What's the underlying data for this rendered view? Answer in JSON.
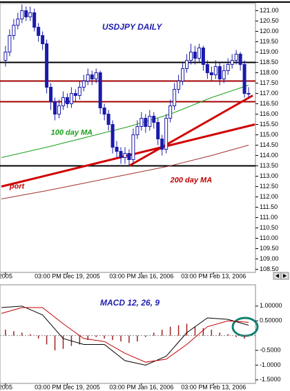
{
  "chart_data": [
    {
      "type": "candlestick",
      "title": "USDJPY DAILY",
      "annotations": [
        {
          "text": "100 day MA",
          "color": "#1a9e1a",
          "x": 11,
          "y": 115.1
        },
        {
          "text": "200 day MA",
          "color": "#c00000",
          "x": 40,
          "y": 112.8
        },
        {
          "text": "port",
          "color": "#c00000",
          "x": 1,
          "y": 112.5
        }
      ],
      "open": [
        118.6,
        119.0,
        119.8,
        120.3,
        120.6,
        121.0,
        120.7,
        120.9,
        120.2,
        119.8,
        119.4,
        117.3,
        116.6,
        116.0,
        116.4,
        116.8,
        116.5,
        117.0,
        116.9,
        117.3,
        117.6,
        117.9,
        117.7,
        118.0,
        116.3,
        116.0,
        115.5,
        114.4,
        114.2,
        113.9,
        114.1,
        113.8,
        115.0,
        115.4,
        115.8,
        115.4,
        115.9,
        115.6,
        114.8,
        114.3,
        115.8,
        116.4,
        117.2,
        117.6,
        118.2,
        118.6,
        119.0,
        118.7,
        119.2,
        118.4,
        118.0,
        117.9,
        118.3,
        117.7,
        118.1,
        118.4,
        118.6,
        118.9,
        118.4,
        117.0
      ],
      "high": [
        119.3,
        120.1,
        120.6,
        120.9,
        121.3,
        121.2,
        121.2,
        121.1,
        120.4,
        120.0,
        119.6,
        117.5,
        116.8,
        116.7,
        117.1,
        117.0,
        117.3,
        117.2,
        117.6,
        117.9,
        118.2,
        118.1,
        118.2,
        118.1,
        116.5,
        116.2,
        115.7,
        114.7,
        114.4,
        114.4,
        114.3,
        115.3,
        115.7,
        116.1,
        116.0,
        116.2,
        116.1,
        115.8,
        115.0,
        116.0,
        116.7,
        117.5,
        117.9,
        118.5,
        118.9,
        119.4,
        119.3,
        119.4,
        119.3,
        118.6,
        118.3,
        118.6,
        118.5,
        118.4,
        118.7,
        118.9,
        119.1,
        119.0,
        118.6,
        117.3
      ],
      "low": [
        118.3,
        118.8,
        119.6,
        120.1,
        120.4,
        120.5,
        120.5,
        120.0,
        119.5,
        119.1,
        117.0,
        116.2,
        115.7,
        115.8,
        116.2,
        116.3,
        116.3,
        116.6,
        116.7,
        117.1,
        117.4,
        117.4,
        117.5,
        116.0,
        115.7,
        115.2,
        114.1,
        113.9,
        113.6,
        113.6,
        113.5,
        113.6,
        114.8,
        115.2,
        115.1,
        115.2,
        115.3,
        114.5,
        114.0,
        114.1,
        115.6,
        116.2,
        117.0,
        117.4,
        118.0,
        118.4,
        118.4,
        118.5,
        118.1,
        117.7,
        117.6,
        117.7,
        117.4,
        117.5,
        117.9,
        118.2,
        118.4,
        118.1,
        116.8,
        116.8
      ],
      "close": [
        119.0,
        119.8,
        120.3,
        120.6,
        121.0,
        120.7,
        120.9,
        120.2,
        119.8,
        119.4,
        117.3,
        116.6,
        116.0,
        116.4,
        116.8,
        116.5,
        117.0,
        116.9,
        117.3,
        117.6,
        117.9,
        117.7,
        118.0,
        116.3,
        116.0,
        115.5,
        114.4,
        114.2,
        113.9,
        114.1,
        113.8,
        115.0,
        115.4,
        115.8,
        115.4,
        115.9,
        115.6,
        114.8,
        114.3,
        115.8,
        116.4,
        117.2,
        117.6,
        118.2,
        118.6,
        119.0,
        118.7,
        119.2,
        118.4,
        118.0,
        117.9,
        118.3,
        117.7,
        118.1,
        118.4,
        118.6,
        118.9,
        118.4,
        117.0,
        117.0
      ],
      "color": "#1a1aaa",
      "lines": [
        {
          "x": [
            -1,
            10,
            20,
            30,
            40,
            50,
            59
          ],
          "values": [
            113.9,
            114.4,
            114.9,
            115.4,
            116.0,
            116.8,
            117.4
          ],
          "color": "#1a9e1a"
        },
        {
          "x": [
            -1,
            10,
            20,
            30,
            40,
            50,
            59
          ],
          "values": [
            111.9,
            112.3,
            112.7,
            113.1,
            113.5,
            114.0,
            114.5
          ],
          "color": "#a03030"
        },
        {
          "x": [
            -1,
            60.5
          ],
          "values": [
            112.5,
            115.5
          ],
          "color": "#d00000"
        },
        {
          "x": [
            30,
            60
          ],
          "values": [
            113.5,
            116.9
          ],
          "color": "#d00000"
        }
      ],
      "levels": [
        {
          "value": 118.5,
          "color": "#000000"
        },
        {
          "value": 117.6,
          "color": "#a00000"
        },
        {
          "value": 116.6,
          "color": "#a00000"
        },
        {
          "value": 113.5,
          "color": "#000000"
        }
      ],
      "xlim": [
        -1.33,
        60.67
      ],
      "xticks": [
        {
          "value": 0,
          "label": "2005"
        },
        {
          "value": 15,
          "label": "03:00 PM Dec 19, 2005"
        },
        {
          "value": 33,
          "label": "03:00 PM Jan 16, 2006"
        },
        {
          "value": 50.5,
          "label": "03:00 PM Feb 13, 2006"
        }
      ],
      "ylim": [
        108.35,
        121.35
      ],
      "yticks": [
        {
          "value": 121,
          "label": "121.00"
        },
        {
          "value": 120.5,
          "label": "120.50"
        },
        {
          "value": 120,
          "label": "120.00"
        },
        {
          "value": 119.5,
          "label": "119.50"
        },
        {
          "value": 119,
          "label": "119.00"
        },
        {
          "value": 118.5,
          "label": "118.50"
        },
        {
          "value": 118,
          "label": "118.00"
        },
        {
          "value": 117.5,
          "label": "117.50"
        },
        {
          "value": 117,
          "label": "117.00"
        },
        {
          "value": 116.5,
          "label": "116.50"
        },
        {
          "value": 116,
          "label": "116.00"
        },
        {
          "value": 115.5,
          "label": "115.50"
        },
        {
          "value": 115,
          "label": "115.00"
        },
        {
          "value": 114.5,
          "label": "114.50"
        },
        {
          "value": 114,
          "label": "114.00"
        },
        {
          "value": 113.5,
          "label": "113.50"
        },
        {
          "value": 113,
          "label": "113.00"
        },
        {
          "value": 112.5,
          "label": "112.50"
        },
        {
          "value": 112,
          "label": "112.00"
        },
        {
          "value": 111.5,
          "label": "111.50"
        },
        {
          "value": 111,
          "label": "111.00"
        },
        {
          "value": 110.5,
          "label": "110.50"
        },
        {
          "value": 110,
          "label": "110.00"
        },
        {
          "value": 109.5,
          "label": "109.50"
        },
        {
          "value": 109,
          "label": "109.00"
        },
        {
          "value": 108.5,
          "label": "108.50"
        }
      ]
    },
    {
      "type": "macd",
      "title": "MACD 12, 26, 9",
      "series": [
        {
          "x": [
            -1,
            4,
            9,
            14,
            19,
            24,
            29,
            34,
            39,
            44,
            49,
            54,
            59
          ],
          "values": [
            0.95,
            1.0,
            0.7,
            -0.1,
            -0.3,
            -0.3,
            -0.85,
            -1.0,
            -0.7,
            0.1,
            0.6,
            0.55,
            0.35
          ],
          "color": "#000000"
        },
        {
          "x": [
            -1,
            4,
            9,
            14,
            19,
            24,
            29,
            34,
            39,
            44,
            49,
            54,
            59
          ],
          "values": [
            0.75,
            0.95,
            0.95,
            0.4,
            -0.1,
            -0.2,
            -0.6,
            -0.9,
            -0.8,
            -0.3,
            0.3,
            0.5,
            0.45
          ],
          "color": "#c00000"
        }
      ],
      "histogram": {
        "x": [
          0,
          2,
          4,
          6,
          8,
          10,
          12,
          14,
          16,
          18,
          20,
          22,
          24,
          26,
          28,
          30,
          32,
          34,
          36,
          38,
          40,
          42,
          44,
          46,
          48,
          50,
          52,
          54,
          56,
          58
        ],
        "values": [
          0.2,
          0.15,
          0.1,
          0.05,
          -0.1,
          -0.3,
          -0.5,
          -0.45,
          -0.35,
          -0.3,
          -0.15,
          -0.05,
          -0.1,
          -0.15,
          -0.2,
          -0.25,
          -0.2,
          -0.05,
          0.1,
          0.2,
          0.3,
          0.35,
          0.4,
          0.3,
          0.25,
          0.2,
          0.1,
          0.05,
          -0.05,
          -0.1
        ],
        "color": "#a02020"
      },
      "xlim": [
        -1.33,
        60.67
      ],
      "ylim": [
        -1.62,
        1.72
      ],
      "yticks": [
        {
          "value": 1,
          "label": "1.00000"
        },
        {
          "value": 0.5,
          "label": "0.50000"
        },
        {
          "value": -0.5,
          "label": "-0.5000"
        },
        {
          "value": -1,
          "label": "-1.0000"
        },
        {
          "value": -1.5,
          "label": "-1.5000"
        }
      ]
    }
  ]
}
